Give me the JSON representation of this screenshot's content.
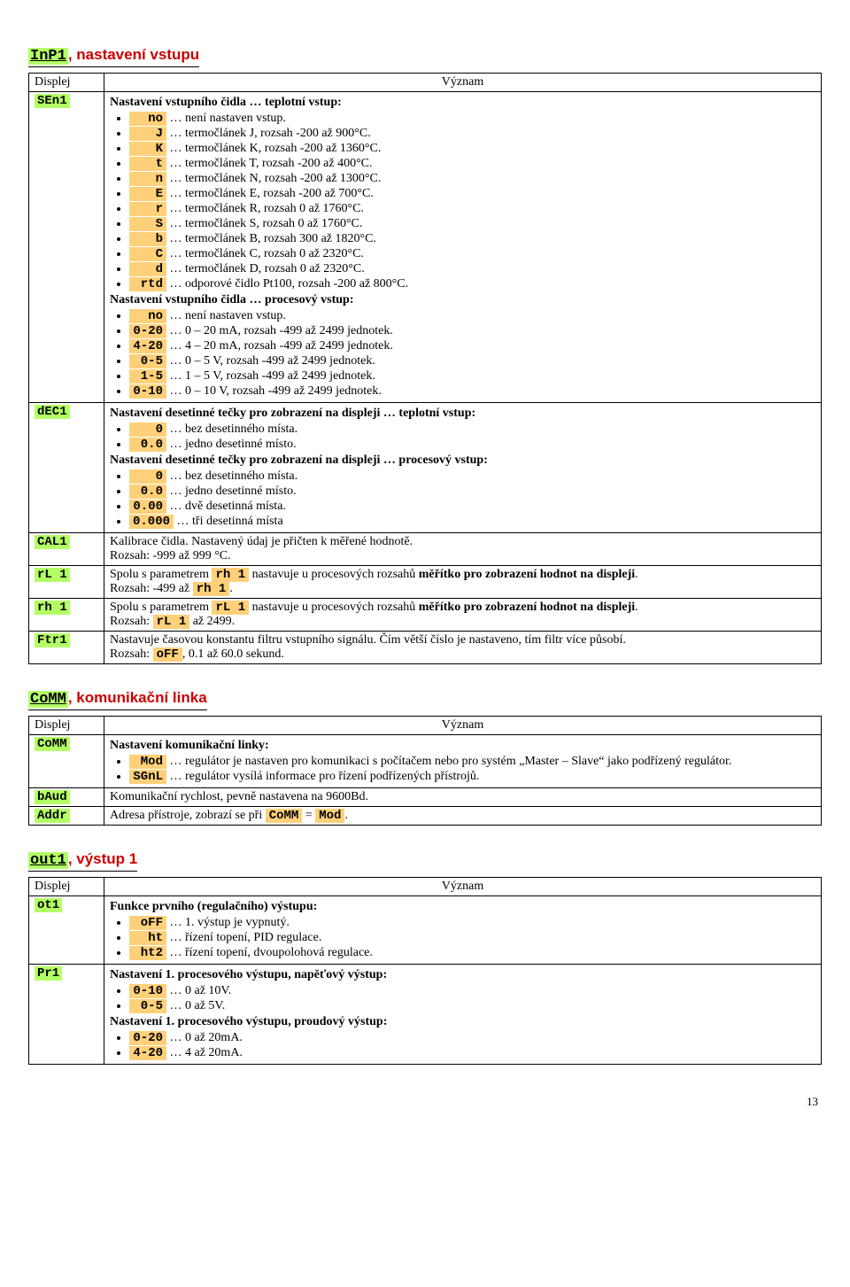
{
  "page_number": "13",
  "sections": {
    "inp1": {
      "code": "InP1",
      "title_rest": " nastavení vstupu",
      "head_disp": "Displej",
      "head_mean": "Význam",
      "rows": {
        "sen1": {
          "disp": "SEn1",
          "heading1": "Nastavení vstupního čidla … teplotní vstup:",
          "items1": [
            {
              "code": "no",
              "desc": "… není nastaven vstup."
            },
            {
              "code": "J",
              "desc": "… termočlánek J, rozsah -200 až 900°C."
            },
            {
              "code": "K",
              "desc": "… termočlánek K, rozsah -200 až 1360°C."
            },
            {
              "code": "t",
              "desc": "… termočlánek T, rozsah -200 až 400°C."
            },
            {
              "code": "n",
              "desc": "… termočlánek N, rozsah -200 až 1300°C."
            },
            {
              "code": "E",
              "desc": "… termočlánek E, rozsah -200 až 700°C."
            },
            {
              "code": "r",
              "desc": "… termočlánek R, rozsah 0 až 1760°C."
            },
            {
              "code": "S",
              "desc": "… termočlánek S, rozsah 0 až 1760°C."
            },
            {
              "code": "b",
              "desc": "… termočlánek B, rozsah 300 až 1820°C."
            },
            {
              "code": "C",
              "desc": "… termočlánek C, rozsah 0 až 2320°C."
            },
            {
              "code": "d",
              "desc": "… termočlánek D, rozsah 0 až 2320°C."
            },
            {
              "code": "rtd",
              "desc": "… odporové čidlo Pt100, rozsah -200 až 800°C."
            }
          ],
          "heading2": "Nastavení vstupního čidla … procesový vstup:",
          "items2": [
            {
              "code": "no",
              "desc": "… není nastaven vstup."
            },
            {
              "code": "0-20",
              "desc": "… 0 – 20 mA, rozsah -499 až 2499 jednotek."
            },
            {
              "code": "4-20",
              "desc": "… 4 – 20 mA, rozsah -499 až 2499 jednotek."
            },
            {
              "code": "0-5",
              "desc": "… 0 – 5 V, rozsah -499 až 2499 jednotek."
            },
            {
              "code": "1-5",
              "desc": "… 1 – 5 V, rozsah -499 až 2499 jednotek."
            },
            {
              "code": "0-10",
              "desc": "… 0 – 10 V, rozsah -499 až 2499 jednotek."
            }
          ]
        },
        "dec1": {
          "disp": "dEC1",
          "heading1": "Nastavení desetinné tečky pro zobrazení na displeji … teplotní vstup:",
          "items1": [
            {
              "code": "0",
              "desc": "… bez desetinného místa."
            },
            {
              "code": "0.0",
              "desc": "… jedno desetinné místo."
            }
          ],
          "heading2": "Nastavení desetinné tečky pro zobrazení na displeji … procesový vstup:",
          "items2": [
            {
              "code": "0",
              "desc": "… bez desetinného místa."
            },
            {
              "code": "0.0",
              "desc": "… jedno desetinné místo."
            },
            {
              "code": "0.00",
              "desc": "… dvě desetinná místa."
            },
            {
              "code": "0.000",
              "desc": "… tři desetinná místa"
            }
          ]
        },
        "cal1": {
          "disp": "CAL1",
          "line1": "Kalibrace čidla. Nastavený údaj je přičten k měřené hodnotě.",
          "line2": "Rozsah: -999 až 999 °C."
        },
        "rl1": {
          "disp": "rL 1",
          "pre": "Spolu s parametrem ",
          "code": "rh 1",
          "mid": " nastavuje u procesových rozsahů ",
          "bold": "měřítko pro zobrazení hodnot na displeji",
          "line2a": "Rozsah: -499 až ",
          "line2code": "rh 1",
          "line2b": "."
        },
        "rh1": {
          "disp": "rh 1",
          "pre": "Spolu s parametrem ",
          "code": "rL 1",
          "mid": " nastavuje u procesových rozsahů ",
          "bold": "měřítko pro zobrazení hodnot na displeji",
          "line2a": "Rozsah: ",
          "line2code": "rL 1",
          "line2b": " až 2499."
        },
        "ftr1": {
          "disp": "Ftr1",
          "line1": "Nastavuje časovou konstantu filtru vstupního signálu. Čím větší číslo je nastaveno, tím filtr více působí.",
          "line2a": "Rozsah: ",
          "line2code": " oFF",
          "line2b": ", 0.1 až 60.0 sekund."
        }
      }
    },
    "comm": {
      "code": "CoMM",
      "title_rest": " komunikační linka",
      "head_disp": "Displej",
      "head_mean": "Význam",
      "rows": {
        "comm": {
          "disp": "CoMM",
          "heading": "Nastavení komunikační linky:",
          "items": [
            {
              "code": " Mod",
              "desc": "… regulátor je nastaven pro komunikaci s počítačem nebo pro systém „Master – Slave“ jako podřízený regulátor."
            },
            {
              "code": "SGnL",
              "desc": "… regulátor vysílá informace pro řízení podřízených přístrojů."
            }
          ]
        },
        "baud": {
          "disp": "bAud",
          "text": "Komunikační rychlost, pevně nastavena na 9600Bd."
        },
        "addr": {
          "disp": "Addr",
          "pre": "Adresa přístroje, zobrazí se při ",
          "code1": "CoMM",
          "mid": " = ",
          "code2": " Mod",
          "suf": "."
        }
      }
    },
    "out1": {
      "code": "out1",
      "title_rest": " výstup 1",
      "head_disp": "Displej",
      "head_mean": "Význam",
      "rows": {
        "ot1": {
          "disp": "ot1",
          "heading": "Funkce prvního (regulačního) výstupu:",
          "items": [
            {
              "code": " oFF",
              "desc": "… 1. výstup je vypnutý."
            },
            {
              "code": "  ht",
              "desc": "… řízení topení, PID regulace."
            },
            {
              "code": " ht2",
              "desc": "… řízení topení, dvoupolohová regulace."
            }
          ]
        },
        "pr1": {
          "disp": "Pr1",
          "heading1": "Nastavení 1. procesového výstupu, napěťový výstup:",
          "items1": [
            {
              "code": "0-10",
              "desc": "… 0 až 10V."
            },
            {
              "code": " 0-5",
              "desc": "… 0 až 5V."
            }
          ],
          "heading2": "Nastavení 1. procesového výstupu, proudový výstup:",
          "items2": [
            {
              "code": "0-20",
              "desc": "… 0 až 20mA."
            },
            {
              "code": "4-20",
              "desc": "… 4 až 20mA."
            }
          ]
        }
      }
    }
  }
}
